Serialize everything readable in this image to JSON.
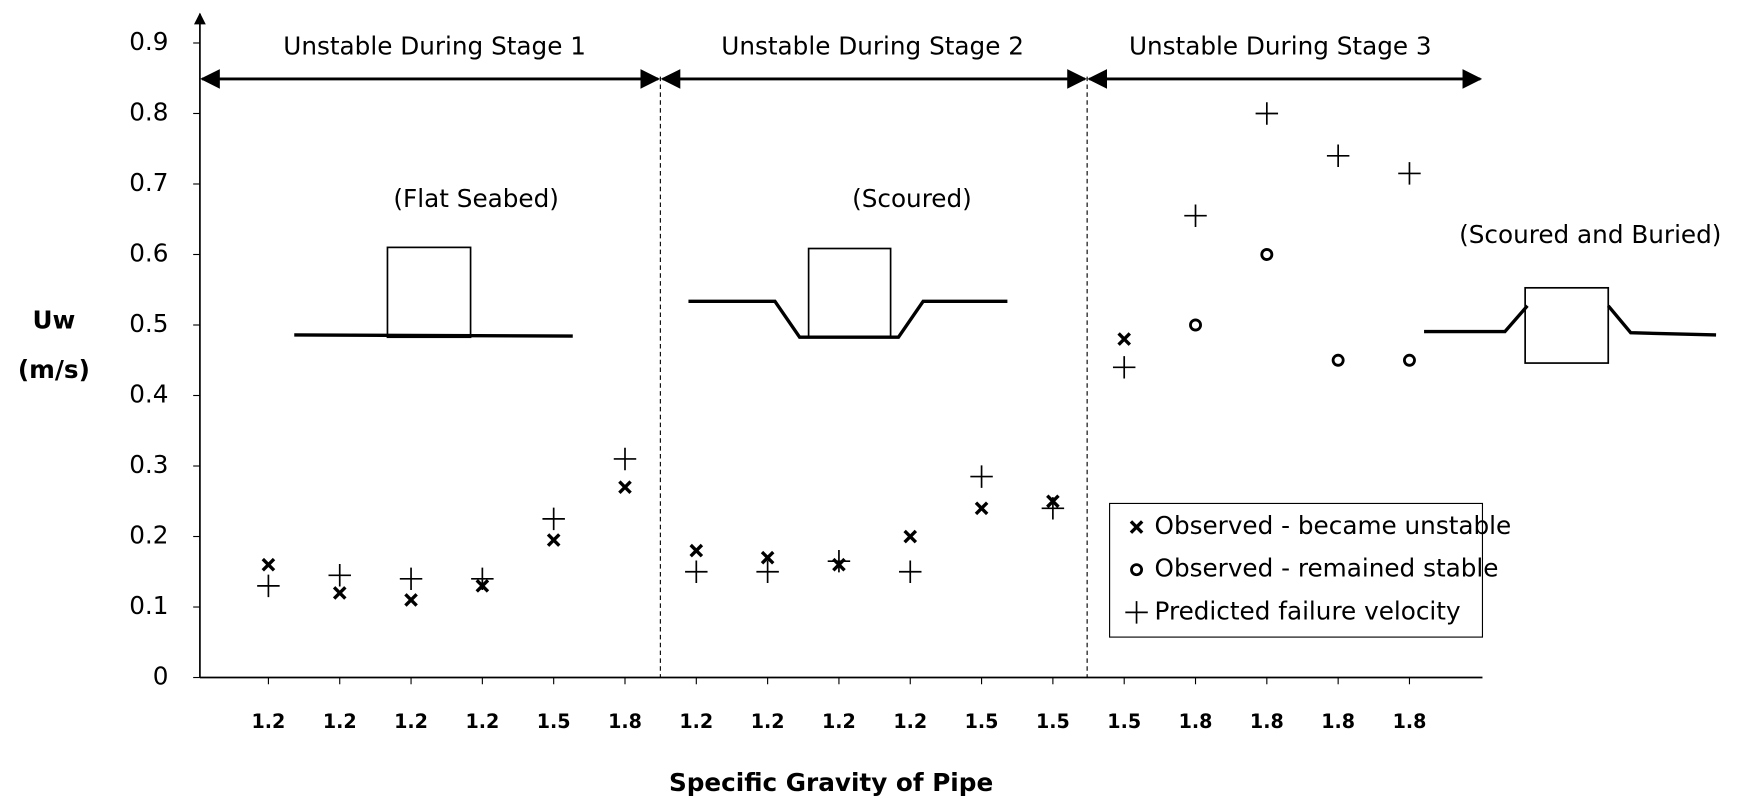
{
  "chart_data": {
    "type": "scatter",
    "x_label": "Specific Gravity of Pipe",
    "y_label": [
      "Uw",
      "(m/s)"
    ],
    "categories": [
      "1.2",
      "1.2",
      "1.2",
      "1.2",
      "1.5",
      "1.8",
      "1.2",
      "1.2",
      "1.2",
      "1.2",
      "1.5",
      "1.5",
      "1.5",
      "1.8",
      "1.8",
      "1.8",
      "1.8"
    ],
    "series": [
      {
        "name": "Observed - became unstable",
        "marker": "x",
        "color": "#000000",
        "values": [
          0.16,
          0.12,
          0.11,
          0.13,
          0.195,
          0.27,
          0.18,
          0.17,
          0.16,
          0.2,
          0.24,
          0.25,
          0.48,
          null,
          null,
          null,
          null
        ]
      },
      {
        "name": "Observed - remained stable",
        "marker": "o",
        "color": "#000000",
        "values": [
          null,
          null,
          null,
          null,
          null,
          null,
          null,
          null,
          null,
          null,
          null,
          null,
          null,
          0.5,
          0.6,
          0.45,
          0.45
        ]
      },
      {
        "name": "Predicted failure velocity",
        "marker": "+",
        "color": "#000000",
        "values": [
          0.13,
          0.145,
          0.14,
          0.14,
          0.225,
          0.31,
          0.15,
          0.15,
          0.165,
          0.15,
          0.285,
          0.24,
          0.44,
          0.655,
          0.8,
          0.74,
          0.715
        ]
      }
    ],
    "ylim": [
      0,
      0.9
    ],
    "yticks": [
      0,
      0.1,
      0.2,
      0.3,
      0.4,
      0.5,
      0.6,
      0.7,
      0.8,
      0.9
    ],
    "stages": [
      "Unstable During Stage 1",
      "Unstable During Stage 2",
      "Unstable During Stage 3"
    ],
    "conditions": [
      "(Flat Seabed)",
      "(Scoured)",
      "(Scoured and Buried)"
    ],
    "legend": "lower right"
  }
}
